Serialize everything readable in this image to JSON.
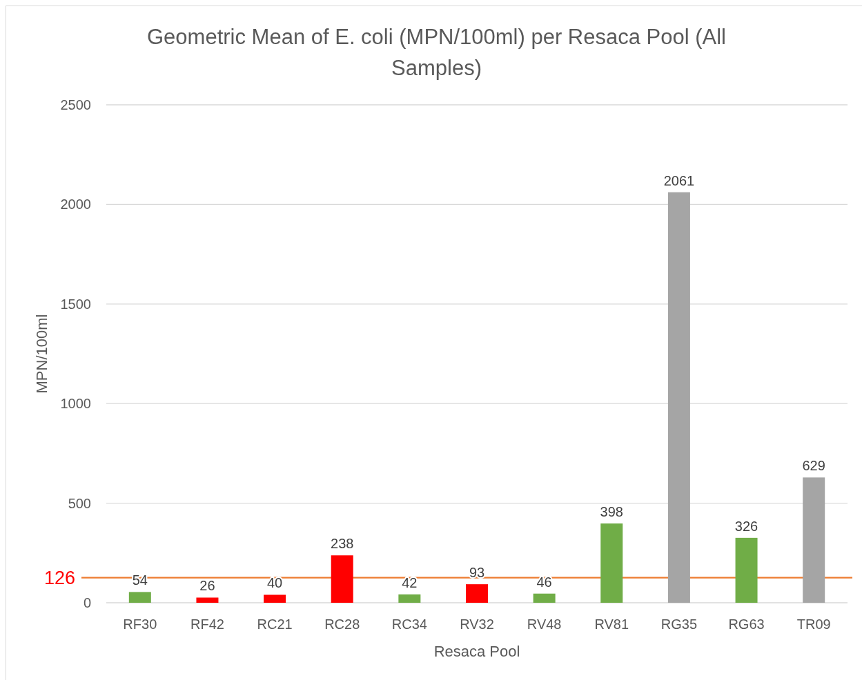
{
  "chart_data": {
    "type": "bar",
    "title": "Geometric Mean of E. coli (MPN/100ml) per Resaca Pool (All Samples)",
    "xlabel": "Resaca Pool",
    "ylabel": "MPN/100ml",
    "categories": [
      "RF30",
      "RF42",
      "RC21",
      "RC28",
      "RC34",
      "RV32",
      "RV48",
      "RV81",
      "RG35",
      "RG63",
      "TR09"
    ],
    "values": [
      54,
      26,
      40,
      238,
      42,
      93,
      46,
      398,
      2061,
      326,
      629
    ],
    "colors": [
      "#70ad47",
      "#ff0000",
      "#ff0000",
      "#ff0000",
      "#70ad47",
      "#ff0000",
      "#70ad47",
      "#70ad47",
      "#a5a5a5",
      "#70ad47",
      "#a5a5a5"
    ],
    "ylim": [
      0,
      2500
    ],
    "yticks": [
      0,
      500,
      1000,
      1500,
      2000,
      2500
    ],
    "grid": "y",
    "data_labels": true,
    "ref_lines": [
      {
        "axis": "y",
        "value": 126,
        "label": "126",
        "color": "#ed7d31"
      }
    ]
  }
}
